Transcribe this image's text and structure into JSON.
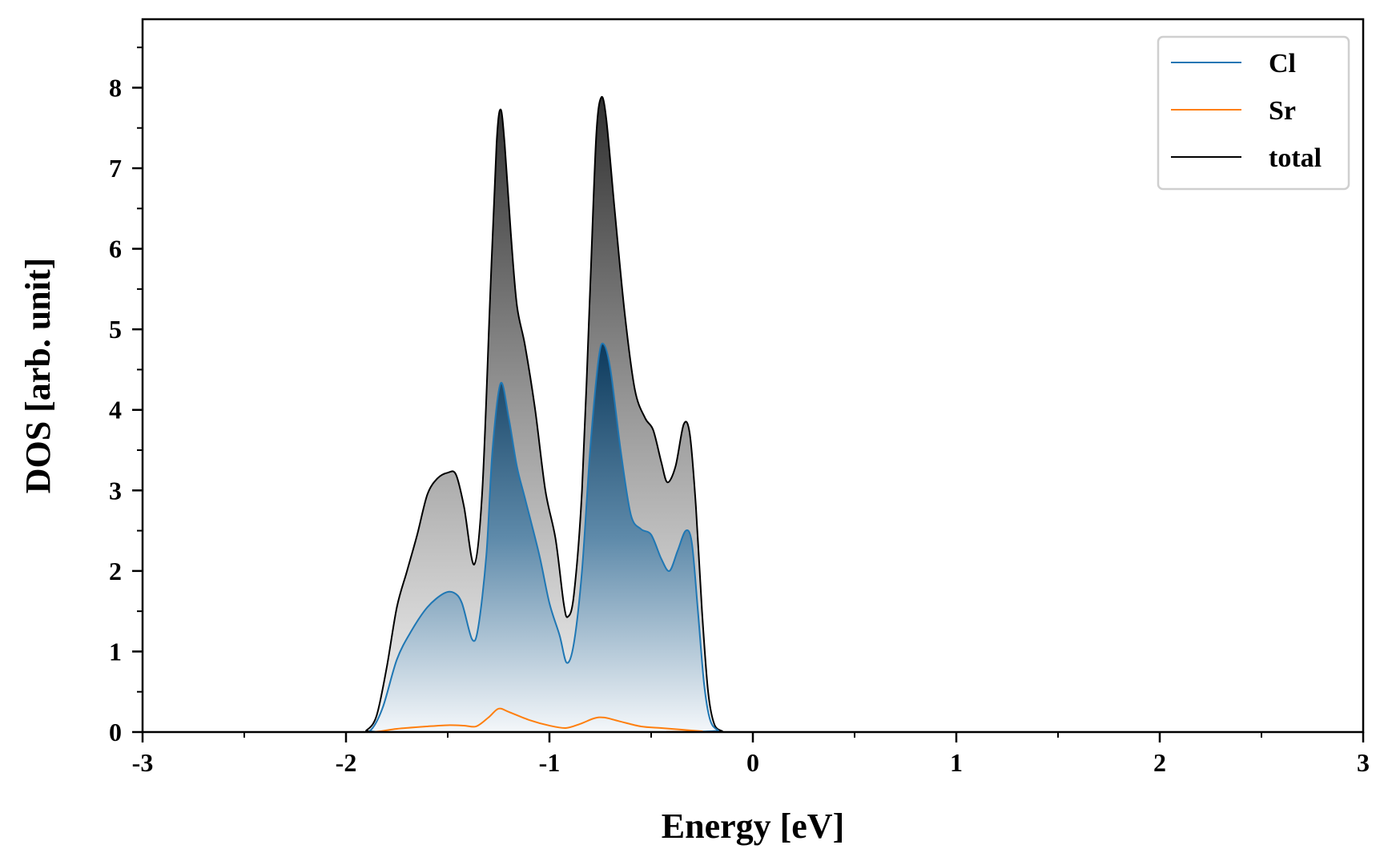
{
  "chart_data": {
    "type": "area",
    "xlabel": "Energy [eV]",
    "ylabel": "DOS [arb. unit]",
    "xlim": [
      -3,
      3
    ],
    "ylim": [
      0,
      8.85
    ],
    "x_ticks": [
      -3,
      -2,
      -1,
      0,
      1,
      2,
      3
    ],
    "y_ticks": [
      0,
      1,
      2,
      3,
      4,
      5,
      6,
      7,
      8
    ],
    "legend_position": "top-right",
    "grid": false,
    "series": [
      {
        "name": "Cl",
        "color": "#1f77b4",
        "fill": "gradient-blue",
        "points": [
          [
            -3,
            0
          ],
          [
            -1.95,
            0
          ],
          [
            -1.88,
            0.02
          ],
          [
            -1.82,
            0.3
          ],
          [
            -1.75,
            0.9
          ],
          [
            -1.68,
            1.25
          ],
          [
            -1.6,
            1.55
          ],
          [
            -1.52,
            1.72
          ],
          [
            -1.47,
            1.73
          ],
          [
            -1.43,
            1.6
          ],
          [
            -1.38,
            1.15
          ],
          [
            -1.35,
            1.3
          ],
          [
            -1.31,
            2.2
          ],
          [
            -1.28,
            3.5
          ],
          [
            -1.24,
            4.33
          ],
          [
            -1.2,
            3.9
          ],
          [
            -1.16,
            3.3
          ],
          [
            -1.12,
            2.9
          ],
          [
            -1.05,
            2.2
          ],
          [
            -1.0,
            1.6
          ],
          [
            -0.95,
            1.2
          ],
          [
            -0.915,
            0.86
          ],
          [
            -0.88,
            1.1
          ],
          [
            -0.84,
            2.0
          ],
          [
            -0.8,
            3.5
          ],
          [
            -0.76,
            4.6
          ],
          [
            -0.735,
            4.82
          ],
          [
            -0.7,
            4.5
          ],
          [
            -0.65,
            3.5
          ],
          [
            -0.6,
            2.7
          ],
          [
            -0.55,
            2.52
          ],
          [
            -0.5,
            2.45
          ],
          [
            -0.45,
            2.15
          ],
          [
            -0.41,
            2.0
          ],
          [
            -0.37,
            2.25
          ],
          [
            -0.33,
            2.5
          ],
          [
            -0.3,
            2.35
          ],
          [
            -0.27,
            1.5
          ],
          [
            -0.24,
            0.6
          ],
          [
            -0.21,
            0.15
          ],
          [
            -0.17,
            0.02
          ],
          [
            -0.12,
            0
          ],
          [
            3,
            0
          ]
        ]
      },
      {
        "name": "Sr",
        "color": "#ff7f0e",
        "fill": "none",
        "points": [
          [
            -3,
            0
          ],
          [
            -1.95,
            0
          ],
          [
            -1.85,
            0.005
          ],
          [
            -1.75,
            0.04
          ],
          [
            -1.6,
            0.07
          ],
          [
            -1.5,
            0.085
          ],
          [
            -1.42,
            0.08
          ],
          [
            -1.36,
            0.07
          ],
          [
            -1.3,
            0.18
          ],
          [
            -1.25,
            0.29
          ],
          [
            -1.2,
            0.25
          ],
          [
            -1.1,
            0.15
          ],
          [
            -1.0,
            0.08
          ],
          [
            -0.92,
            0.05
          ],
          [
            -0.85,
            0.1
          ],
          [
            -0.78,
            0.17
          ],
          [
            -0.73,
            0.18
          ],
          [
            -0.65,
            0.13
          ],
          [
            -0.55,
            0.07
          ],
          [
            -0.45,
            0.05
          ],
          [
            -0.35,
            0.03
          ],
          [
            -0.25,
            0.01
          ],
          [
            -0.18,
            0
          ],
          [
            3,
            0
          ]
        ]
      },
      {
        "name": "total",
        "color": "#000000",
        "fill": "gradient-gray",
        "points": [
          [
            -3,
            0
          ],
          [
            -1.95,
            0
          ],
          [
            -1.9,
            0.02
          ],
          [
            -1.85,
            0.2
          ],
          [
            -1.8,
            0.8
          ],
          [
            -1.75,
            1.55
          ],
          [
            -1.7,
            2.0
          ],
          [
            -1.65,
            2.45
          ],
          [
            -1.6,
            2.95
          ],
          [
            -1.55,
            3.15
          ],
          [
            -1.5,
            3.22
          ],
          [
            -1.46,
            3.2
          ],
          [
            -1.42,
            2.8
          ],
          [
            -1.37,
            2.08
          ],
          [
            -1.33,
            3.0
          ],
          [
            -1.29,
            5.5
          ],
          [
            -1.26,
            7.3
          ],
          [
            -1.24,
            7.73
          ],
          [
            -1.22,
            7.3
          ],
          [
            -1.19,
            6.2
          ],
          [
            -1.16,
            5.3
          ],
          [
            -1.12,
            4.8
          ],
          [
            -1.07,
            4.0
          ],
          [
            -1.02,
            3.0
          ],
          [
            -0.97,
            2.4
          ],
          [
            -0.93,
            1.6
          ],
          [
            -0.91,
            1.43
          ],
          [
            -0.88,
            1.7
          ],
          [
            -0.84,
            3.0
          ],
          [
            -0.8,
            5.5
          ],
          [
            -0.77,
            7.4
          ],
          [
            -0.745,
            7.88
          ],
          [
            -0.72,
            7.6
          ],
          [
            -0.68,
            6.5
          ],
          [
            -0.63,
            5.2
          ],
          [
            -0.58,
            4.25
          ],
          [
            -0.53,
            3.9
          ],
          [
            -0.49,
            3.75
          ],
          [
            -0.45,
            3.35
          ],
          [
            -0.42,
            3.1
          ],
          [
            -0.38,
            3.3
          ],
          [
            -0.34,
            3.82
          ],
          [
            -0.31,
            3.7
          ],
          [
            -0.28,
            2.8
          ],
          [
            -0.25,
            1.5
          ],
          [
            -0.22,
            0.5
          ],
          [
            -0.19,
            0.1
          ],
          [
            -0.15,
            0.01
          ],
          [
            -0.12,
            0
          ],
          [
            3,
            0
          ]
        ]
      }
    ]
  }
}
